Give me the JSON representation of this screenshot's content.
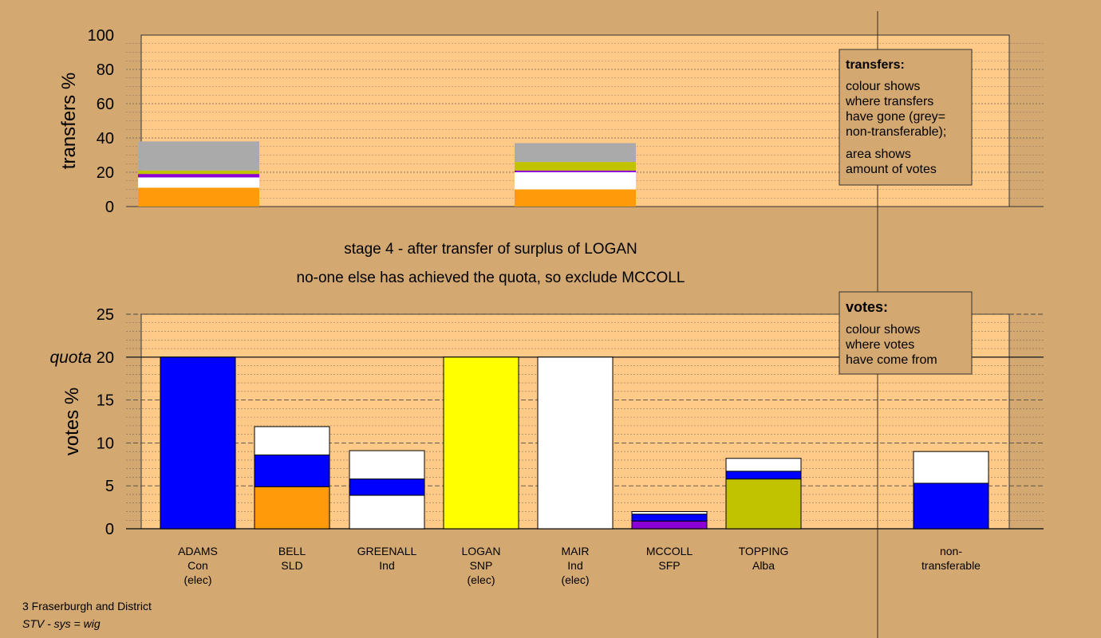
{
  "page": {
    "colors": {
      "background": "#d4a871",
      "plot_bg": "#ffc987",
      "orange": "#ff9a0a",
      "blue": "#0000ff",
      "yellow": "#ffff00",
      "white": "#ffffff",
      "olive": "#c1c300",
      "purple": "#8b00d6",
      "grey": "#aaaaaa"
    },
    "caption_line1": "stage 4 - after transfer of surplus of LOGAN",
    "caption_line2": "no-one else has achieved the quota, so exclude MCCOLL",
    "footer_line1": "3 Fraserburgh and District",
    "footer_line2": "STV - sys = wig"
  },
  "transfers_box": {
    "title": "transfers:",
    "lines1": [
      "colour shows",
      "where transfers",
      "have gone (grey=",
      "non-transferable);"
    ],
    "lines2": [
      "area shows",
      "amount of votes"
    ]
  },
  "votes_box": {
    "title": "votes:",
    "lines": [
      "colour shows",
      "where votes",
      "have come from"
    ]
  },
  "chart_data": [
    {
      "type": "bar",
      "name": "transfers",
      "ylabel": "transfers %",
      "ylim": [
        0,
        100
      ],
      "yticks": [
        0,
        20,
        40,
        60,
        80,
        100
      ],
      "grid": true,
      "bars": [
        {
          "slot": 0,
          "segments": [
            {
              "color": "orange",
              "value": 11
            },
            {
              "color": "white",
              "value": 6
            },
            {
              "color": "purple",
              "value": 2
            },
            {
              "color": "olive",
              "value": 2
            },
            {
              "color": "grey",
              "value": 17
            }
          ]
        },
        {
          "slot": 4,
          "segments": [
            {
              "color": "orange",
              "value": 10
            },
            {
              "color": "white",
              "value": 10
            },
            {
              "color": "purple",
              "value": 1
            },
            {
              "color": "olive",
              "value": 5
            },
            {
              "color": "grey",
              "value": 11
            }
          ]
        }
      ]
    },
    {
      "type": "bar",
      "name": "votes",
      "ylabel": "votes %",
      "ylim": [
        0,
        25
      ],
      "yticks": [
        0,
        5,
        10,
        15,
        20,
        25
      ],
      "quota": 20,
      "quota_label": "quota",
      "grid": true,
      "categories": [
        {
          "lines": [
            "ADAMS",
            "Con",
            "(elec)"
          ],
          "segments": [
            {
              "color": "blue",
              "value": 20
            }
          ]
        },
        {
          "lines": [
            "BELL",
            "SLD"
          ],
          "segments": [
            {
              "color": "orange",
              "value": 4.9
            },
            {
              "color": "blue",
              "value": 3.7
            },
            {
              "color": "white",
              "value": 3.3
            }
          ]
        },
        {
          "lines": [
            "GREENALL",
            "Ind"
          ],
          "segments": [
            {
              "color": "white",
              "value": 3.9
            },
            {
              "color": "blue",
              "value": 1.9
            },
            {
              "color": "white",
              "value": 3.3
            }
          ]
        },
        {
          "lines": [
            "LOGAN",
            "SNP",
            "(elec)"
          ],
          "segments": [
            {
              "color": "yellow",
              "value": 20
            }
          ]
        },
        {
          "lines": [
            "MAIR",
            "Ind",
            "(elec)"
          ],
          "segments": [
            {
              "color": "white",
              "value": 20
            }
          ]
        },
        {
          "lines": [
            "MCCOLL",
            "SFP"
          ],
          "segments": [
            {
              "color": "purple",
              "value": 0.9
            },
            {
              "color": "blue",
              "value": 0.8
            },
            {
              "color": "white",
              "value": 0.3
            }
          ]
        },
        {
          "lines": [
            "TOPPING",
            "Alba"
          ],
          "segments": [
            {
              "color": "olive",
              "value": 5.8
            },
            {
              "color": "blue",
              "value": 0.9
            },
            {
              "color": "white",
              "value": 1.5
            }
          ]
        },
        {
          "lines": [
            "non-",
            "transferable"
          ],
          "segments": [
            {
              "color": "blue",
              "value": 5.3
            },
            {
              "color": "white",
              "value": 3.7
            }
          ]
        }
      ]
    }
  ]
}
